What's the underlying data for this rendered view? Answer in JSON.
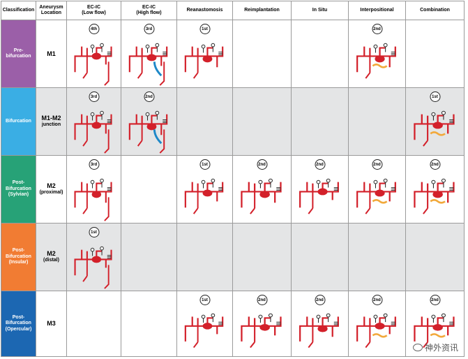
{
  "headers": {
    "classification": "Classification",
    "location": "Aneurysm Location",
    "ecic_low": "EC-IC",
    "ecic_low_sub": "(Low flow)",
    "ecic_high": "EC-IC",
    "ecic_high_sub": "(High flow)",
    "reanastomosis": "Reanastomosis",
    "reimplantation": "Reimplantation",
    "in_situ": "In Situ",
    "interpositional": "Interpositional",
    "combination": "Combination"
  },
  "rows": [
    {
      "classification": "Pre-bifurcation",
      "color": "#9b5fa8",
      "location": "M1",
      "location_sub": "",
      "ranks": [
        "4th",
        "3rd",
        "1st",
        "",
        "",
        "2nd",
        ""
      ]
    },
    {
      "classification": "Bifurcation",
      "color": "#3aaee4",
      "location": "M1-M2",
      "location_sub": "junction",
      "ranks": [
        "3rd",
        "2nd",
        "",
        "",
        "",
        "",
        "1st"
      ]
    },
    {
      "classification": "Post-Bifurcation (Sylvian)",
      "color": "#27a277",
      "location": "M2",
      "location_sub": "(proximal)",
      "ranks": [
        "3rd",
        "",
        "1st",
        "2nd",
        "2nd",
        "2nd",
        "2nd"
      ]
    },
    {
      "classification": "Post-Bifurcation (Insular)",
      "color": "#f17c33",
      "location": "M2",
      "location_sub": "(distal)",
      "ranks": [
        "1st",
        "",
        "",
        "",
        "",
        "",
        ""
      ]
    },
    {
      "classification": "Post-Bifurcation (Opercular)",
      "color": "#1c67b2",
      "location": "M3",
      "location_sub": "",
      "ranks": [
        "",
        "",
        "1st",
        "2nd",
        "2nd",
        "2nd",
        "2nd"
      ]
    }
  ],
  "colors": {
    "vessel": "#d3202a",
    "graft_high": "#1e88c8",
    "graft_interpos": "#f2a93b",
    "clip": "#222222",
    "shade": "#e4e5e6"
  },
  "watermark": "神外资讯"
}
